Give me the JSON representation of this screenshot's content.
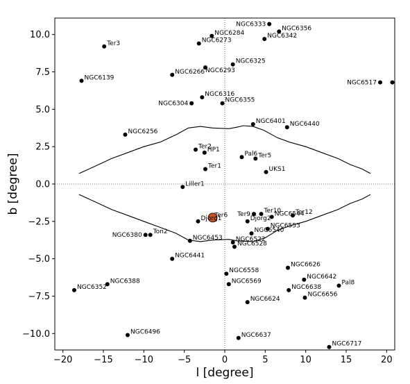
{
  "chart_data": {
    "type": "scatter",
    "xlabel": "l [degree]",
    "ylabel": "b [degree]",
    "xlim": [
      -21,
      21
    ],
    "ylim": [
      -11.1,
      11.1
    ],
    "xticks": [
      -20,
      -15,
      -10,
      -5,
      0,
      5,
      10,
      15,
      20
    ],
    "yticks": [
      -10.0,
      -7.5,
      -5.0,
      -2.5,
      0.0,
      2.5,
      5.0,
      7.5,
      10.0
    ],
    "xtick_labels": [
      "−20",
      "−15",
      "−10",
      "−5",
      "0",
      "5",
      "10",
      "15",
      "20"
    ],
    "ytick_labels": [
      "−10.0",
      "−7.5",
      "−5.0",
      "−2.5",
      "0.0",
      "2.5",
      "5.0",
      "7.5",
      "10.0"
    ],
    "grid": false,
    "reference_lines": {
      "x": 0,
      "y": 0,
      "style": "dotted"
    },
    "clusters": [
      {
        "name": "NGC6333",
        "l": 5.5,
        "b": 10.7,
        "side": "left"
      },
      {
        "name": "NGC6356",
        "l": 6.7,
        "b": 10.2,
        "side": "right"
      },
      {
        "name": "NGC6342",
        "l": 4.9,
        "b": 9.7,
        "side": "right"
      },
      {
        "name": "NGC6284",
        "l": -1.6,
        "b": 9.9,
        "side": "right"
      },
      {
        "name": "NGC6273",
        "l": -3.2,
        "b": 9.4,
        "side": "right"
      },
      {
        "name": "Ter3",
        "l": -14.9,
        "b": 9.2,
        "side": "right"
      },
      {
        "name": "NGC6325",
        "l": 1.0,
        "b": 8.0,
        "side": "right"
      },
      {
        "name": "NGC6266",
        "l": -6.5,
        "b": 7.3,
        "side": "right"
      },
      {
        "name": "NGC6293",
        "l": -2.4,
        "b": 7.8,
        "side": "below"
      },
      {
        "name": "NGC6139",
        "l": -17.7,
        "b": 6.9,
        "side": "right"
      },
      {
        "name": "NGC6517",
        "l": 19.2,
        "b": 6.8,
        "side": "left"
      },
      {
        "name": "",
        "l": 20.7,
        "b": 6.8,
        "side": "none"
      },
      {
        "name": "NGC6316",
        "l": -2.8,
        "b": 5.8,
        "side": "right"
      },
      {
        "name": "NGC6304",
        "l": -4.1,
        "b": 5.4,
        "side": "left"
      },
      {
        "name": "NGC6355",
        "l": -0.3,
        "b": 5.4,
        "side": "right"
      },
      {
        "name": "NGC6401",
        "l": 3.5,
        "b": 4.0,
        "side": "right"
      },
      {
        "name": "NGC6440",
        "l": 7.7,
        "b": 3.8,
        "side": "right"
      },
      {
        "name": "NGC6256",
        "l": -12.3,
        "b": 3.3,
        "side": "right"
      },
      {
        "name": "Ter2",
        "l": -3.6,
        "b": 2.3,
        "side": "right"
      },
      {
        "name": "HP1",
        "l": -2.5,
        "b": 2.1,
        "side": "right"
      },
      {
        "name": "Pal6",
        "l": 2.1,
        "b": 1.8,
        "side": "right"
      },
      {
        "name": "Ter5",
        "l": 3.8,
        "b": 1.7,
        "side": "right"
      },
      {
        "name": "Ter1",
        "l": -2.4,
        "b": 1.0,
        "side": "right"
      },
      {
        "name": "UKS1",
        "l": 5.1,
        "b": 0.8,
        "side": "right"
      },
      {
        "name": "Liller1",
        "l": -5.2,
        "b": -0.2,
        "side": "right"
      },
      {
        "name": "Ter9",
        "l": 3.6,
        "b": -2.0,
        "side": "left"
      },
      {
        "name": "Ter10",
        "l": 4.5,
        "b": -2.0,
        "side": "right"
      },
      {
        "name": "NGC6544",
        "l": 5.8,
        "b": -2.2,
        "side": "right"
      },
      {
        "name": "Ter12",
        "l": 8.4,
        "b": -2.1,
        "side": "right"
      },
      {
        "name": "Ter6",
        "l": -1.6,
        "b": -2.3,
        "side": "right"
      },
      {
        "name": "Djorg1",
        "l": -3.3,
        "b": -2.5,
        "side": "right"
      },
      {
        "name": "Djorg2",
        "l": 2.8,
        "b": -2.5,
        "side": "right"
      },
      {
        "name": "NGC6553",
        "l": 5.3,
        "b": -3.0,
        "side": "right"
      },
      {
        "name": "NGC6540",
        "l": 3.3,
        "b": -3.3,
        "side": "right"
      },
      {
        "name": "NGC6380",
        "l": -9.8,
        "b": -3.4,
        "side": "left"
      },
      {
        "name": "Ton2",
        "l": -9.2,
        "b": -3.4,
        "side": "right"
      },
      {
        "name": "NGC6453",
        "l": -4.3,
        "b": -3.8,
        "side": "right"
      },
      {
        "name": "NGC6522",
        "l": 1.0,
        "b": -3.9,
        "side": "right"
      },
      {
        "name": "NGC6528",
        "l": 1.2,
        "b": -4.2,
        "side": "right"
      },
      {
        "name": "NGC6441",
        "l": -6.5,
        "b": -5.0,
        "side": "right"
      },
      {
        "name": "NGC6626",
        "l": 7.8,
        "b": -5.6,
        "side": "right"
      },
      {
        "name": "NGC6558",
        "l": 0.2,
        "b": -6.0,
        "side": "right"
      },
      {
        "name": "NGC6642",
        "l": 9.8,
        "b": -6.4,
        "side": "right"
      },
      {
        "name": "NGC6388",
        "l": -14.5,
        "b": -6.7,
        "side": "right"
      },
      {
        "name": "NGC6569",
        "l": 0.5,
        "b": -6.7,
        "side": "right"
      },
      {
        "name": "Pal8",
        "l": 14.1,
        "b": -6.8,
        "side": "right"
      },
      {
        "name": "NGC6352",
        "l": -18.6,
        "b": -7.1,
        "side": "right"
      },
      {
        "name": "NGC6638",
        "l": 7.9,
        "b": -7.1,
        "side": "right"
      },
      {
        "name": "NGC6656",
        "l": 9.9,
        "b": -7.6,
        "side": "right"
      },
      {
        "name": "NGC6624",
        "l": 2.8,
        "b": -7.9,
        "side": "right"
      },
      {
        "name": "NGC6496",
        "l": -12.0,
        "b": -10.1,
        "side": "right"
      },
      {
        "name": "NGC6637",
        "l": 1.7,
        "b": -10.3,
        "side": "right"
      },
      {
        "name": "NGC6717",
        "l": 12.9,
        "b": -10.9,
        "side": "right"
      }
    ],
    "highlight": {
      "l": -1.5,
      "b": -2.25,
      "color": "#c8501e"
    },
    "contour_upper": [
      [
        -18,
        0.7
      ],
      [
        -16,
        1.2
      ],
      [
        -14,
        1.7
      ],
      [
        -12,
        2.1
      ],
      [
        -10,
        2.5
      ],
      [
        -8,
        2.8
      ],
      [
        -6,
        3.3
      ],
      [
        -4.5,
        3.75
      ],
      [
        -3,
        3.85
      ],
      [
        -1.5,
        3.75
      ],
      [
        0.5,
        3.7
      ],
      [
        1.5,
        3.8
      ],
      [
        2.3,
        3.9
      ],
      [
        3.5,
        3.85
      ],
      [
        4.8,
        3.6
      ],
      [
        6.5,
        3.1
      ],
      [
        8,
        2.8
      ],
      [
        10,
        2.5
      ],
      [
        12,
        2.1
      ],
      [
        14,
        1.7
      ],
      [
        15.5,
        1.3
      ],
      [
        17,
        1.0
      ],
      [
        18,
        0.7
      ]
    ],
    "contour_lower": [
      [
        -18,
        -0.7
      ],
      [
        -16,
        -1.2
      ],
      [
        -14,
        -1.7
      ],
      [
        -12,
        -2.1
      ],
      [
        -10,
        -2.5
      ],
      [
        -8,
        -2.9
      ],
      [
        -6,
        -3.3
      ],
      [
        -4.5,
        -3.75
      ],
      [
        -3,
        -3.85
      ],
      [
        -1.5,
        -3.75
      ],
      [
        0.5,
        -3.7
      ],
      [
        1.5,
        -3.8
      ],
      [
        3.5,
        -3.85
      ],
      [
        5,
        -3.6
      ],
      [
        6.5,
        -3.1
      ],
      [
        8,
        -2.8
      ],
      [
        10,
        -2.5
      ],
      [
        12,
        -2.1
      ],
      [
        14,
        -1.7
      ],
      [
        15.5,
        -1.3
      ],
      [
        17,
        -1.0
      ],
      [
        18,
        -0.7
      ]
    ]
  }
}
